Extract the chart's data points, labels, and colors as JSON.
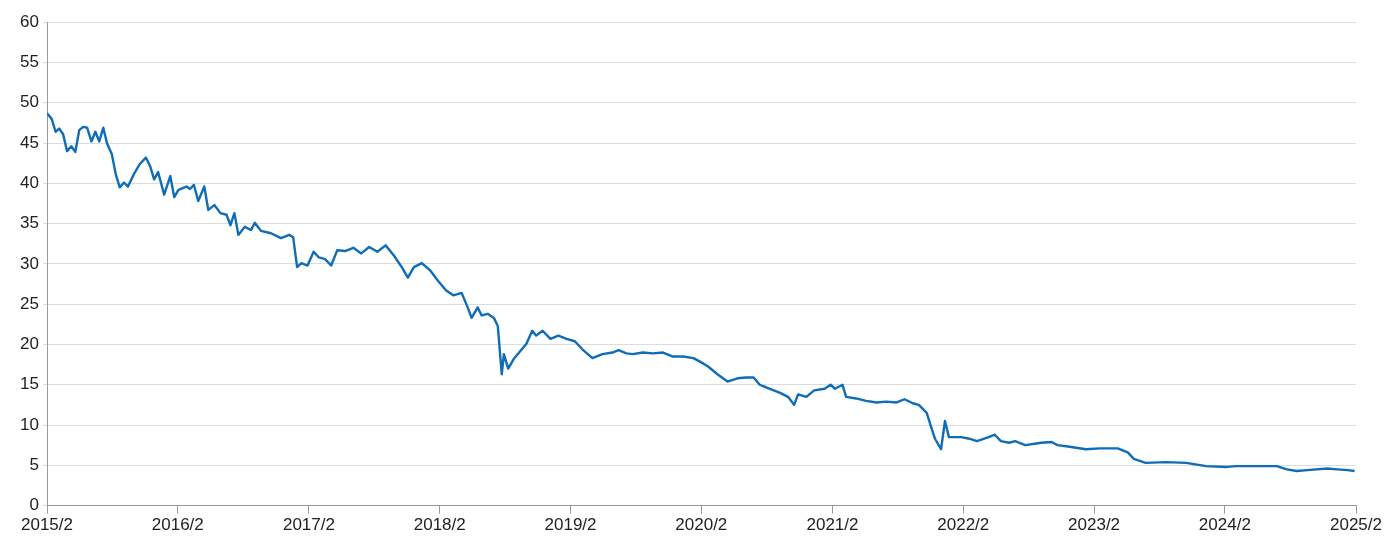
{
  "chart_data": {
    "type": "line",
    "x": [
      "2015-02-01",
      "2015-02-14",
      "2015-02-25",
      "2015-03-07",
      "2015-03-18",
      "2015-03-29",
      "2015-04-10",
      "2015-04-21",
      "2015-05-02",
      "2015-05-13",
      "2015-05-24",
      "2015-06-05",
      "2015-06-16",
      "2015-06-27",
      "2015-07-08",
      "2015-07-19",
      "2015-08-01",
      "2015-08-12",
      "2015-08-23",
      "2015-09-04",
      "2015-09-15",
      "2015-10-01",
      "2015-10-18",
      "2015-11-04",
      "2015-11-16",
      "2015-11-27",
      "2015-12-08",
      "2015-12-25",
      "2016-01-11",
      "2016-01-22",
      "2016-02-03",
      "2016-02-25",
      "2016-03-06",
      "2016-03-17",
      "2016-03-29",
      "2016-04-15",
      "2016-04-26",
      "2016-05-13",
      "2016-05-30",
      "2016-06-16",
      "2016-06-27",
      "2016-07-08",
      "2016-07-19",
      "2016-08-06",
      "2016-08-23",
      "2016-09-03",
      "2016-09-20",
      "2016-10-18",
      "2016-11-15",
      "2016-12-08",
      "2016-12-19",
      "2016-12-30",
      "2017-01-11",
      "2017-01-28",
      "2017-02-14",
      "2017-03-01",
      "2017-03-18",
      "2017-04-04",
      "2017-04-21",
      "2017-05-13",
      "2017-06-05",
      "2017-06-27",
      "2017-07-19",
      "2017-08-11",
      "2017-09-03",
      "2017-09-25",
      "2017-10-18",
      "2017-11-04",
      "2017-11-21",
      "2017-12-13",
      "2018-01-05",
      "2018-01-27",
      "2018-02-19",
      "2018-03-11",
      "2018-04-03",
      "2018-04-20",
      "2018-05-01",
      "2018-05-18",
      "2018-05-29",
      "2018-06-15",
      "2018-07-02",
      "2018-07-13",
      "2018-07-24",
      "2018-07-30",
      "2018-08-11",
      "2018-08-28",
      "2018-09-14",
      "2018-10-01",
      "2018-10-17",
      "2018-10-28",
      "2018-11-15",
      "2018-12-07",
      "2018-12-29",
      "2019-01-21",
      "2019-02-13",
      "2019-03-06",
      "2019-04-03",
      "2019-05-01",
      "2019-05-29",
      "2019-06-15",
      "2019-07-07",
      "2019-07-24",
      "2019-08-22",
      "2019-09-19",
      "2019-10-17",
      "2019-11-14",
      "2019-12-12",
      "2020-01-10",
      "2020-01-27",
      "2020-02-19",
      "2020-03-17",
      "2020-04-14",
      "2020-05-12",
      "2020-06-04",
      "2020-06-26",
      "2020-07-13",
      "2020-08-10",
      "2020-09-08",
      "2020-09-30",
      "2020-10-17",
      "2020-10-28",
      "2020-11-20",
      "2020-12-12",
      "2021-01-10",
      "2021-01-27",
      "2021-02-08",
      "2021-03-01",
      "2021-03-11",
      "2021-04-08",
      "2021-05-06",
      "2021-06-04",
      "2021-07-01",
      "2021-07-30",
      "2021-08-21",
      "2021-09-13",
      "2021-09-30",
      "2021-10-22",
      "2021-11-03",
      "2021-11-14",
      "2021-12-01",
      "2021-12-12",
      "2021-12-23",
      "2022-01-26",
      "2022-02-18",
      "2022-03-11",
      "2022-04-13",
      "2022-04-30",
      "2022-05-17",
      "2022-06-09",
      "2022-06-26",
      "2022-07-24",
      "2022-09-07",
      "2022-10-05",
      "2022-10-22",
      "2022-11-25",
      "2023-01-09",
      "2023-02-18",
      "2023-04-08",
      "2023-05-06",
      "2023-05-23",
      "2023-06-25",
      "2023-08-21",
      "2023-10-16",
      "2023-12-11",
      "2024-02-07",
      "2024-03-04",
      "2024-05-27",
      "2024-06-25",
      "2024-07-23",
      "2024-08-20",
      "2024-09-18",
      "2024-11-13",
      "2024-12-11",
      "2025-01-09",
      "2025-01-28"
    ],
    "series": [
      {
        "color": "#0f6db8",
        "values": [
          48.7,
          48.0,
          46.4,
          46.8,
          46.1,
          44.0,
          44.6,
          43.9,
          46.6,
          47.0,
          46.9,
          45.2,
          46.4,
          45.2,
          46.9,
          44.9,
          43.6,
          41.1,
          39.5,
          40.1,
          39.6,
          41.1,
          42.4,
          43.2,
          42.1,
          40.5,
          41.4,
          38.6,
          40.9,
          38.3,
          39.2,
          39.6,
          39.3,
          39.8,
          37.8,
          39.6,
          36.7,
          37.3,
          36.3,
          36.1,
          34.8,
          36.3,
          33.6,
          34.6,
          34.2,
          35.1,
          34.1,
          33.8,
          33.2,
          33.6,
          33.3,
          29.6,
          30.1,
          29.8,
          31.5,
          30.8,
          30.6,
          29.8,
          31.7,
          31.6,
          32.0,
          31.3,
          32.1,
          31.5,
          32.3,
          31.1,
          29.6,
          28.3,
          29.6,
          30.1,
          29.2,
          27.9,
          26.7,
          26.1,
          26.4,
          24.6,
          23.3,
          24.6,
          23.6,
          23.8,
          23.3,
          22.3,
          16.3,
          18.8,
          17.0,
          18.3,
          19.2,
          20.1,
          21.7,
          21.1,
          21.7,
          20.7,
          21.1,
          20.7,
          20.4,
          19.4,
          18.3,
          18.8,
          19.0,
          19.3,
          18.9,
          18.8,
          19.0,
          18.9,
          19.0,
          18.5,
          18.5,
          18.3,
          17.9,
          17.3,
          16.3,
          15.4,
          15.8,
          15.9,
          15.9,
          15.0,
          14.5,
          14.0,
          13.5,
          12.5,
          13.8,
          13.5,
          14.3,
          14.5,
          15.0,
          14.5,
          15.0,
          13.5,
          13.3,
          13.0,
          12.8,
          12.9,
          12.8,
          13.2,
          12.7,
          12.5,
          11.5,
          9.8,
          8.3,
          7.0,
          10.5,
          8.5,
          8.5,
          8.3,
          8.0,
          8.5,
          8.8,
          8.0,
          7.8,
          8.0,
          7.5,
          7.8,
          7.9,
          7.5,
          7.3,
          7.0,
          7.1,
          7.1,
          6.6,
          5.8,
          5.3,
          5.4,
          5.3,
          4.9,
          4.8,
          4.9,
          4.9,
          4.9,
          4.5,
          4.3,
          4.4,
          4.6,
          4.5,
          4.4,
          4.3
        ]
      }
    ],
    "xlim": [
      "2015-02",
      "2025-02"
    ],
    "xticks": [
      {
        "value": "2015-02",
        "label": "2015/2"
      },
      {
        "value": "2016-02",
        "label": "2016/2"
      },
      {
        "value": "2017-02",
        "label": "2017/2"
      },
      {
        "value": "2018-02",
        "label": "2018/2"
      },
      {
        "value": "2019-02",
        "label": "2019/2"
      },
      {
        "value": "2020-02",
        "label": "2020/2"
      },
      {
        "value": "2021-02",
        "label": "2021/2"
      },
      {
        "value": "2022-02",
        "label": "2022/2"
      },
      {
        "value": "2023-02",
        "label": "2023/2"
      },
      {
        "value": "2024-02",
        "label": "2024/2"
      },
      {
        "value": "2025-02",
        "label": "2025/2"
      }
    ],
    "ylim": [
      0,
      60
    ],
    "yticks": [
      0,
      5,
      10,
      15,
      20,
      25,
      30,
      35,
      40,
      45,
      50,
      55,
      60
    ],
    "grid": "y",
    "marker": "none",
    "line_style": "solid"
  }
}
